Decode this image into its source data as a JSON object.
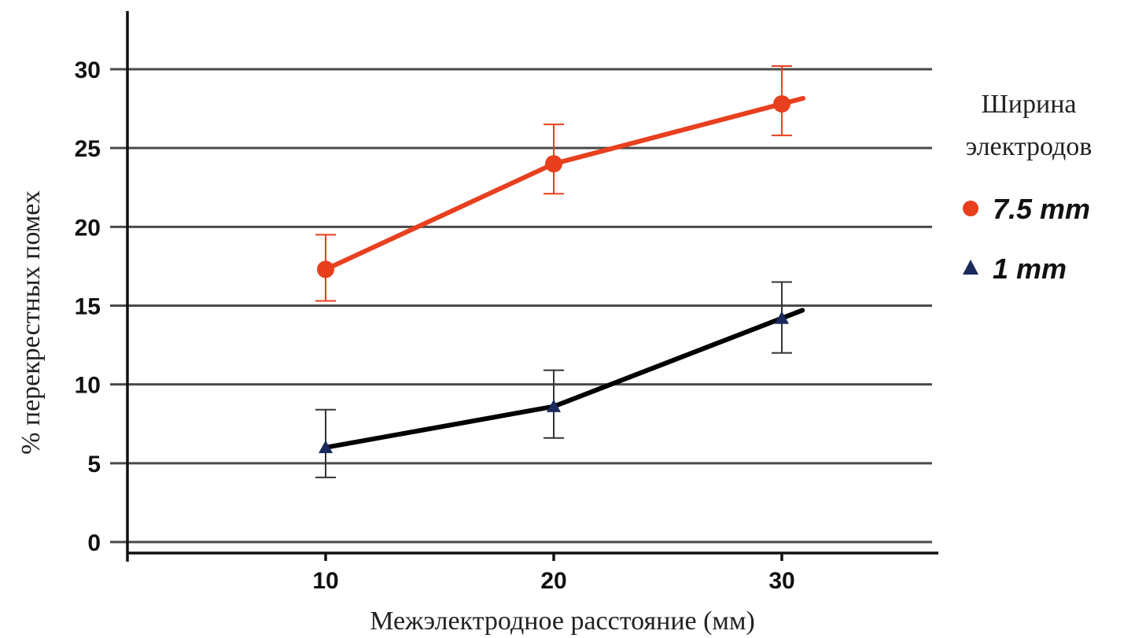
{
  "chart_data": {
    "type": "line",
    "x": [
      10,
      20,
      30
    ],
    "xlabel": "Межэлектродное расстояние (мм)",
    "ylabel": "% перекрестных помех",
    "ylim": [
      0,
      30
    ],
    "yticks": [
      0,
      5,
      10,
      15,
      20,
      25,
      30
    ],
    "xticks": [
      10,
      20,
      30
    ],
    "grid": true,
    "legend": {
      "title_lines": [
        "Ширина",
        "электродов"
      ],
      "placement": "right"
    },
    "series": [
      {
        "name": "7.5 mm",
        "values": [
          17.3,
          24.0,
          27.8
        ],
        "error_high": [
          19.5,
          26.5,
          30.2
        ],
        "error_low": [
          15.3,
          22.1,
          25.8
        ],
        "color": "#e8401f",
        "marker": "circle"
      },
      {
        "name": "1 mm",
        "values": [
          6.0,
          8.6,
          14.2
        ],
        "error_high": [
          8.4,
          10.9,
          16.5
        ],
        "error_low": [
          4.1,
          6.6,
          12.0
        ],
        "color": "#000000",
        "marker_color": "#1a2a5c",
        "marker": "triangle"
      }
    ]
  }
}
